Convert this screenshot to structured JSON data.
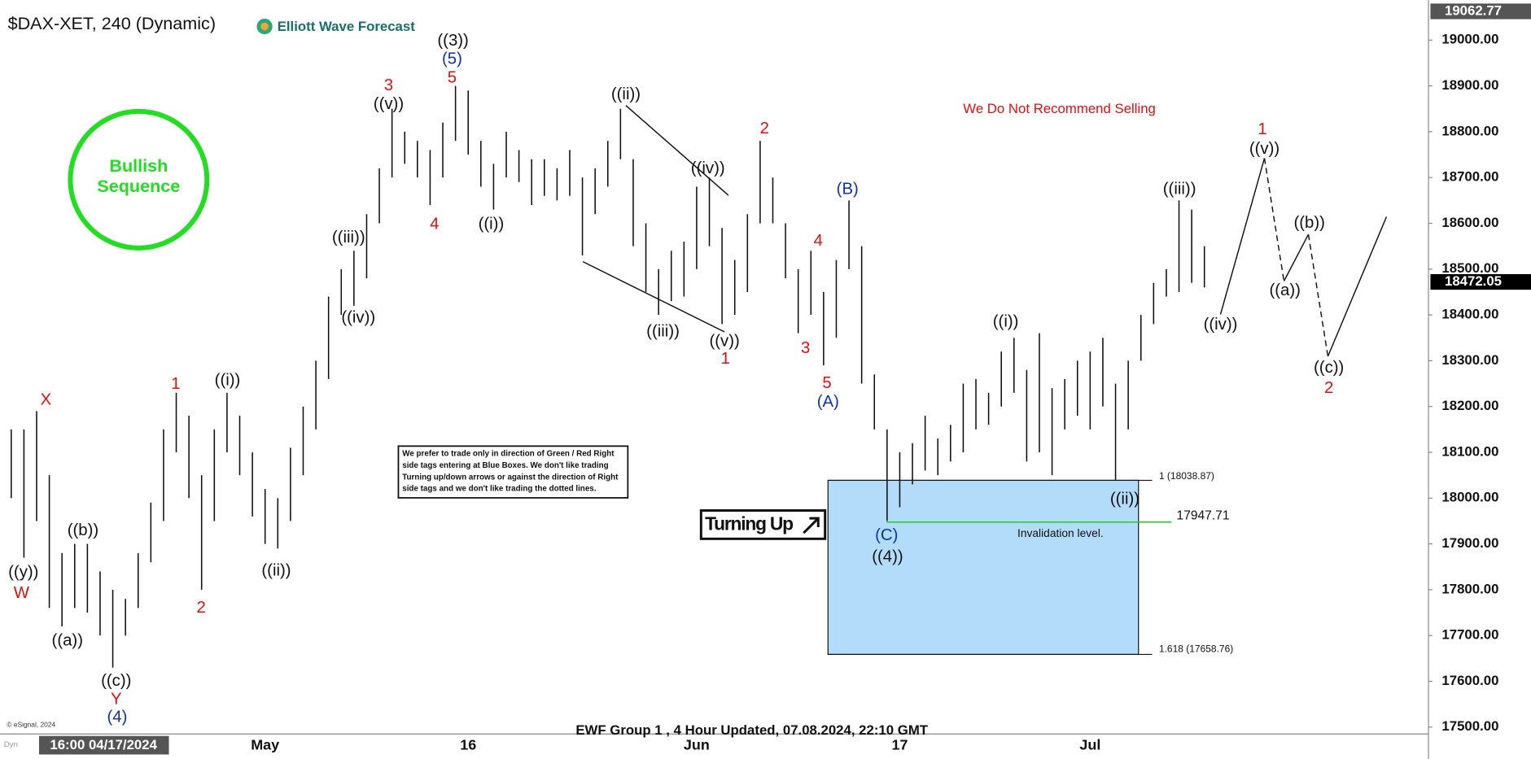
{
  "chart_data": {
    "type": "ohlc",
    "title": "$DAX-XET, 240 (Dynamic)",
    "logo": "Elliott Wave Forecast",
    "badge": [
      "Bullish",
      "Sequence"
    ],
    "warning": "We Do Not Recommend Selling",
    "note": [
      "We prefer to trade only in direction of Green / Red Right",
      "side tags entering at Blue Boxes. We don't like trading",
      "Turning up/down arrows or against the direction of Right",
      "side tags and we don't like trading the dotted lines."
    ],
    "signal": "Turning Up",
    "footer": "EWF Group 1 , 4 Hour Updated, 07.08.2024, 22:10 GMT",
    "copyright": "© eSignal, 2024",
    "platform": "Dyn",
    "cursor_date": "16:00 04/17/2024",
    "color": "#111111",
    "zone_color": "#b3dcfb",
    "categories": [
      null,
      null,
      null,
      null,
      null,
      null,
      null,
      null,
      null,
      null,
      null,
      null,
      null,
      null,
      null,
      null,
      null,
      null,
      null,
      null,
      "May",
      null,
      null,
      null,
      null,
      null,
      null,
      null,
      null,
      null,
      null,
      null,
      null,
      null,
      null,
      null,
      "16",
      null,
      null,
      null,
      null,
      null,
      null,
      null,
      null,
      null,
      null,
      null,
      null,
      null,
      null,
      null,
      null,
      null,
      "Jun",
      null,
      null,
      null,
      null,
      null,
      null,
      null,
      null,
      null,
      null,
      null,
      null,
      null,
      null,
      null,
      "17",
      null,
      null,
      null,
      null,
      null,
      null,
      null,
      null,
      null,
      null,
      null,
      null,
      null,
      null,
      "Jul",
      null,
      null,
      null,
      null,
      null,
      null,
      null,
      null,
      null
    ],
    "high": [
      18150,
      18150,
      18190,
      18050,
      17880,
      17900,
      17900,
      17840,
      17800,
      17780,
      17880,
      17990,
      18150,
      18230,
      18180,
      18050,
      18150,
      18230,
      18180,
      18100,
      18020,
      18000,
      18110,
      18200,
      18300,
      18440,
      18500,
      18540,
      18620,
      18720,
      18850,
      18800,
      18780,
      18760,
      18820,
      18900,
      18890,
      18780,
      18730,
      18800,
      18760,
      18740,
      18740,
      18720,
      18760,
      18700,
      18720,
      18780,
      18850,
      18740,
      18600,
      18500,
      18540,
      18560,
      18680,
      18700,
      18590,
      18520,
      18620,
      18780,
      18700,
      18600,
      18500,
      18540,
      18450,
      18520,
      18650,
      18550,
      18270,
      18150,
      18100,
      18120,
      18180,
      18130,
      18160,
      18250,
      18260,
      18230,
      18320,
      18350,
      18280,
      18360,
      18240,
      18260,
      18300,
      18320,
      18350,
      18250,
      18300,
      18400,
      18470,
      18500,
      18650,
      18630,
      18550
    ],
    "low": [
      18000,
      17870,
      17950,
      17760,
      17720,
      17760,
      17750,
      17700,
      17630,
      17700,
      17760,
      17860,
      17950,
      18100,
      18000,
      17800,
      17950,
      18100,
      18050,
      17960,
      17900,
      17890,
      17950,
      18050,
      18150,
      18260,
      18400,
      18420,
      18480,
      18600,
      18700,
      18730,
      18700,
      18640,
      18700,
      18780,
      18750,
      18680,
      18630,
      18700,
      18690,
      18640,
      18660,
      18650,
      18660,
      18530,
      18620,
      18680,
      18740,
      18550,
      18450,
      18400,
      18430,
      18440,
      18500,
      18550,
      18380,
      18400,
      18450,
      18600,
      18600,
      18480,
      18360,
      18400,
      18290,
      18350,
      18500,
      18250,
      18150,
      17950,
      17980,
      18030,
      18060,
      18050,
      18080,
      18100,
      18150,
      18160,
      18200,
      18230,
      18080,
      18100,
      18050,
      18150,
      18180,
      18150,
      18200,
      18040,
      18150,
      18300,
      18380,
      18440,
      18450,
      18470,
      18460
    ],
    "ylim": [
      17485,
      19066
    ],
    "yticks": [
      {
        "value": 17500,
        "label": "17500.00"
      },
      {
        "value": 17600,
        "label": "17600.00"
      },
      {
        "value": 17700,
        "label": "17700.00"
      },
      {
        "value": 17800,
        "label": "17800.00"
      },
      {
        "value": 17900,
        "label": "17900.00"
      },
      {
        "value": 18000,
        "label": "18000.00"
      },
      {
        "value": 18100,
        "label": "18100.00"
      },
      {
        "value": 18200,
        "label": "18200.00"
      },
      {
        "value": 18300,
        "label": "18300.00"
      },
      {
        "value": 18400,
        "label": "18400.00"
      },
      {
        "value": 18500,
        "label": "18500.00"
      },
      {
        "value": 18600,
        "label": "18600.00"
      },
      {
        "value": 18700,
        "label": "18700.00"
      },
      {
        "value": 18800,
        "label": "18800.00"
      },
      {
        "value": 18900,
        "label": "18900.00"
      },
      {
        "value": 19000,
        "label": "19000.00"
      }
    ],
    "axis_top": {
      "value": 19062.77,
      "label": "19062.77"
    },
    "last_price": {
      "value": 18472.05,
      "label": "18472.05"
    },
    "zone_top": {
      "value": 18038.87,
      "label": "1 (18038.87)"
    },
    "zone_bottom": {
      "value": 17658.76,
      "label": "1.618 (17658.76)"
    },
    "invalidation": {
      "value": 17947.71,
      "label": "17947.71"
    },
    "invalidation_text": "Invalidation level.",
    "wave_labels": [
      "((y))",
      "W",
      "X",
      "((b))",
      "((a))",
      "((c))",
      "Y",
      "(4)",
      "1",
      "2",
      "((i))",
      "((ii))",
      "((iii))",
      "((iv))",
      "3",
      "((v))",
      "4",
      "((3))",
      "(5)",
      "5",
      "((i))",
      "((ii))",
      "((iv))",
      "((iii))",
      "((v))",
      "1",
      "2",
      "(B)",
      "4",
      "3",
      "5",
      "(A)",
      "(C)",
      "((4))",
      "((i))",
      "((ii))",
      "((iii))",
      "1",
      "((v))",
      "((b))",
      "((a))",
      "((iv))",
      "((c))",
      "2"
    ]
  }
}
